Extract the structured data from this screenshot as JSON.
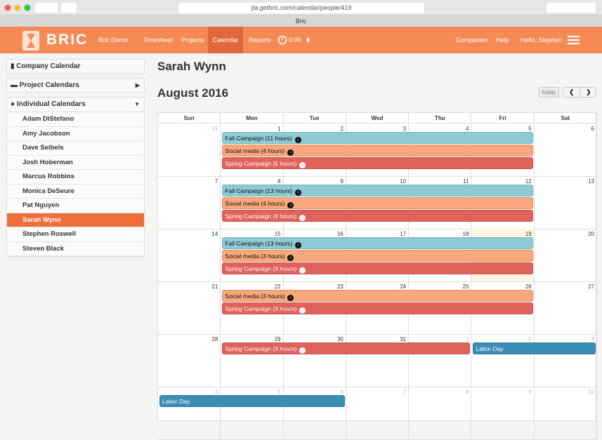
{
  "browser": {
    "url": "jta.getbric.com/calendar/people/419",
    "tab_title": "Bric"
  },
  "nav": {
    "logo": "BRIC",
    "items": [
      "Bric Demo",
      "Timesheet",
      "Projects",
      "Calendar",
      "Reports"
    ],
    "timer": "0:00",
    "right": [
      "Companies",
      "Help",
      "Hello, Stephen"
    ]
  },
  "sidebar": {
    "company": "Company Calendar",
    "projects": "Project Calendars",
    "individual": "Individual Calendars",
    "people": [
      "Adam DiStefano",
      "Amy Jacobson",
      "Dave Seibels",
      "Josh Hoberman",
      "Marcus Robbins",
      "Monica DeSeure",
      "Pat Nguyen",
      "Sarah Wynn",
      "Stephen Roswell",
      "Steven Black"
    ]
  },
  "main": {
    "person": "Sarah Wynn",
    "month": "August 2016",
    "today_button": "today",
    "weekdays": [
      "Sun",
      "Mon",
      "Tue",
      "Wed",
      "Thu",
      "Fri",
      "Sat"
    ],
    "weeks": [
      [
        31,
        1,
        2,
        3,
        4,
        5,
        6
      ],
      [
        7,
        8,
        9,
        10,
        11,
        12,
        13
      ],
      [
        14,
        15,
        16,
        17,
        18,
        19,
        20
      ],
      [
        21,
        22,
        23,
        24,
        25,
        26,
        27
      ],
      [
        28,
        29,
        30,
        31,
        1,
        2,
        3
      ],
      [
        4,
        5,
        6,
        7,
        8,
        9,
        10
      ]
    ],
    "events": [
      {
        "label": "Fall Campaign (11 hours)",
        "color": "#8ccbd3"
      },
      {
        "label": "Social media (4 hours)",
        "color": "#f8a87c"
      },
      {
        "label": "Spring Campaign (5 hours)",
        "color": "#e0625b"
      },
      {
        "label": "Fall Campaign (13 hours)",
        "color": "#8ccbd3"
      },
      {
        "label": "Social media (4 hours)",
        "color": "#f8a87c"
      },
      {
        "label": "Spring Campaign (4 hours)",
        "color": "#e0625b"
      },
      {
        "label": "Fall Campaign (13 hours)",
        "color": "#8ccbd3"
      },
      {
        "label": "Social media (3 hours)",
        "color": "#f8a87c"
      },
      {
        "label": "Spring Campaign (3 hours)",
        "color": "#e0625b"
      },
      {
        "label": "Social media (3 hours)",
        "color": "#f8a87c"
      },
      {
        "label": "Spring Campaign (3 hours)",
        "color": "#e0625b"
      },
      {
        "label": "Spring Campaign (3 hours)",
        "color": "#e0625b"
      },
      {
        "label": "Labor Day",
        "color": "#3b8db5"
      },
      {
        "label": "Labor Day",
        "color": "#3b8db5"
      }
    ]
  }
}
